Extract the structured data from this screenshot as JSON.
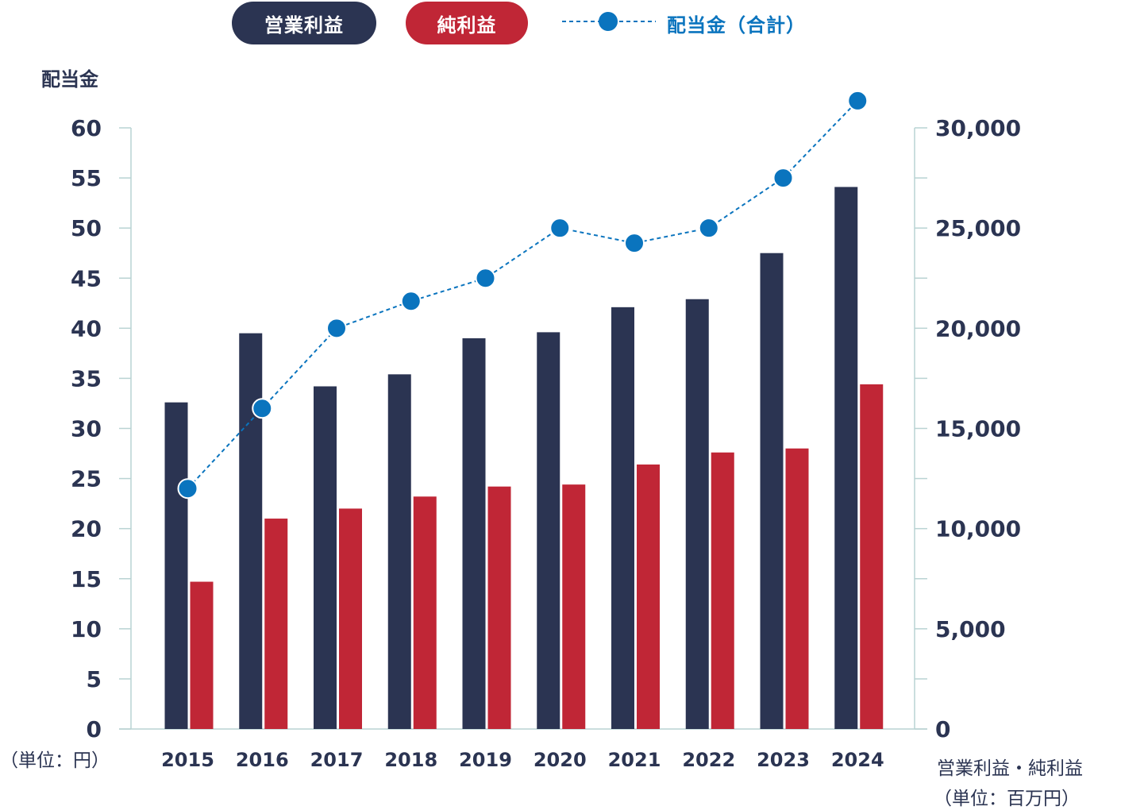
{
  "legend": {
    "operating_profit": "営業利益",
    "net_profit": "純利益",
    "dividend": "配当金（合計）"
  },
  "axes": {
    "left_title": "配当金",
    "left_unit": "（単位：円）",
    "right_title": "営業利益・純利益",
    "right_unit": "（単位：百万円）"
  },
  "colors": {
    "operating_profit": "#2b3452",
    "net_profit": "#c02636",
    "dividend": "#0a74be",
    "axis_text": "#2b3452",
    "grid": "#b9d3d3"
  },
  "chart_data": {
    "type": "bar",
    "categories": [
      "2015",
      "2016",
      "2017",
      "2018",
      "2019",
      "2020",
      "2021",
      "2022",
      "2023",
      "2024"
    ],
    "series": [
      {
        "name": "営業利益",
        "axis": "right",
        "type": "bar",
        "values": [
          16300,
          19750,
          17100,
          17700,
          19500,
          19800,
          21050,
          21450,
          23750,
          27050
        ]
      },
      {
        "name": "純利益",
        "axis": "right",
        "type": "bar",
        "values": [
          7350,
          10500,
          11000,
          11600,
          12100,
          12200,
          13200,
          13800,
          14000,
          17200
        ]
      },
      {
        "name": "配当金（合計）",
        "axis": "left",
        "type": "line",
        "style": "dashed",
        "values": [
          24,
          32,
          40,
          42.7,
          45,
          50,
          48.5,
          50,
          55,
          62.7
        ]
      }
    ],
    "left_axis": {
      "min": 0,
      "max": 60,
      "ticks": [
        "0",
        "5",
        "10",
        "15",
        "20",
        "25",
        "30",
        "35",
        "40",
        "45",
        "50",
        "55",
        "60"
      ]
    },
    "right_axis": {
      "min": 0,
      "max": 30000,
      "ticks": [
        "0",
        "5,000",
        "10,000",
        "15,000",
        "20,000",
        "25,000",
        "30,000"
      ]
    },
    "legend_position": "top"
  }
}
